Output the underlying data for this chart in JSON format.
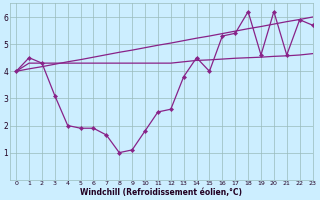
{
  "x_data": [
    0,
    1,
    2,
    3,
    4,
    5,
    6,
    7,
    8,
    9,
    10,
    11,
    12,
    13,
    14,
    15,
    16,
    17,
    18,
    19,
    20,
    21,
    22,
    23
  ],
  "y_main": [
    4.0,
    4.5,
    4.3,
    3.1,
    2.0,
    1.9,
    1.9,
    1.65,
    1.0,
    1.1,
    1.8,
    2.5,
    2.6,
    3.8,
    4.5,
    4.0,
    5.3,
    5.4,
    6.2,
    4.6,
    6.2,
    4.6,
    5.9,
    5.7
  ],
  "y_upper": [
    4.0,
    4.09,
    4.17,
    4.26,
    4.35,
    4.43,
    4.52,
    4.61,
    4.7,
    4.78,
    4.87,
    4.96,
    5.04,
    5.13,
    5.22,
    5.3,
    5.39,
    5.48,
    5.57,
    5.65,
    5.74,
    5.83,
    5.91,
    6.0
  ],
  "y_lower": [
    4.0,
    4.3,
    4.3,
    4.3,
    4.3,
    4.3,
    4.3,
    4.3,
    4.3,
    4.3,
    4.3,
    4.3,
    4.3,
    4.35,
    4.4,
    4.42,
    4.45,
    4.48,
    4.5,
    4.52,
    4.55,
    4.57,
    4.6,
    4.65
  ],
  "background_color": "#cceeff",
  "line_color": "#882288",
  "grid_color": "#99bbbb",
  "xlabel": "Windchill (Refroidissement éolien,°C)",
  "ylim": [
    0,
    6.5
  ],
  "xlim": [
    -0.5,
    23
  ],
  "yticks": [
    1,
    2,
    3,
    4,
    5,
    6
  ],
  "xticks": [
    0,
    1,
    2,
    3,
    4,
    5,
    6,
    7,
    8,
    9,
    10,
    11,
    12,
    13,
    14,
    15,
    16,
    17,
    18,
    19,
    20,
    21,
    22,
    23
  ]
}
